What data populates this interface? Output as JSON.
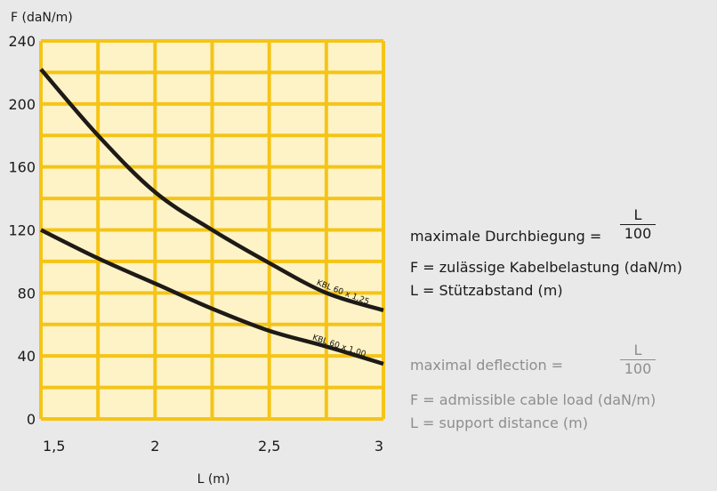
{
  "chart_data": {
    "type": "line",
    "xlabel": "L (m)",
    "ylabel": "F (daN/m)",
    "xlim": [
      1.5,
      3
    ],
    "ylim": [
      0,
      240
    ],
    "x_ticks": [
      "1,5",
      "2",
      "2,5",
      "3"
    ],
    "x_tick_values": [
      1.5,
      2,
      2.5,
      3
    ],
    "y_ticks": [
      "0",
      "40",
      "80",
      "120",
      "160",
      "200",
      "240"
    ],
    "y_tick_values": [
      0,
      40,
      80,
      120,
      160,
      200,
      240
    ],
    "grid": true,
    "series": [
      {
        "name": "KBL 60 x 1,25",
        "x": [
          1.5,
          1.75,
          2.0,
          2.25,
          2.5,
          2.75,
          3.0
        ],
        "y": [
          222,
          180,
          144,
          120,
          99,
          80,
          69
        ]
      },
      {
        "name": "KBL 60 x 1,00",
        "x": [
          1.5,
          1.75,
          2.0,
          2.25,
          2.5,
          2.75,
          3.0
        ],
        "y": [
          120,
          102,
          86,
          70,
          56,
          46,
          35
        ]
      }
    ]
  },
  "legend_de": {
    "deflection_label": "maximale Durchbiegung =",
    "numerator": "L",
    "denominator": "100",
    "f_def": "F = zulässige Kabelbelastung (daN/m)",
    "l_def": "L = Stützabstand (m)"
  },
  "legend_en": {
    "deflection_label": "maximal deflection =",
    "numerator": "L",
    "denominator": "100",
    "f_def": "F = admissible cable load (daN/m)",
    "l_def": "L = support distance (m)"
  },
  "colors": {
    "plot_fill": "#fdf3c6",
    "grid": "#f5c417",
    "curve": "#1d1a17",
    "background": "#e9e9e9",
    "english_text": "#8e8e8e"
  }
}
